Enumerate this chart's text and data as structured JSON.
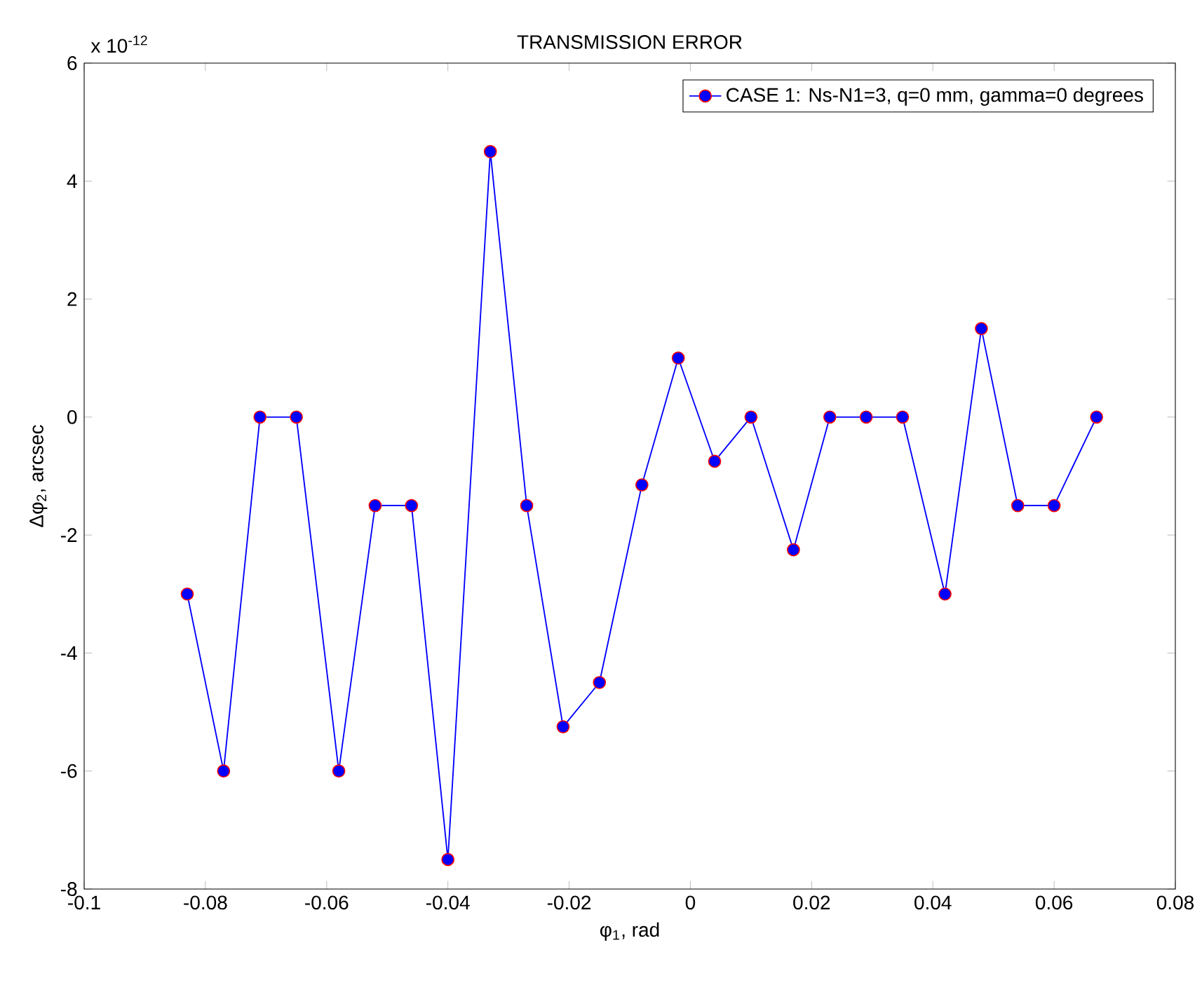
{
  "chart_data": {
    "type": "line",
    "title": "TRANSMISSION ERROR",
    "xlabel": "φ$_{1}$, rad",
    "ylabel": "Δφ$_{2}$, arcsec",
    "annotations": [
      "x 10$^{-12}$"
    ],
    "x": [
      -0.083,
      -0.077,
      -0.071,
      -0.065,
      -0.058,
      -0.052,
      -0.046,
      -0.04,
      -0.033,
      -0.027,
      -0.021,
      -0.015,
      -0.008,
      -0.002,
      0.004,
      0.01,
      0.017,
      0.023,
      0.029,
      0.035,
      0.042,
      0.048,
      0.054,
      0.06,
      0.067
    ],
    "series": [
      {
        "name": "CASE 1: Ns-N1=3, q=0 mm, gamma=0 degrees",
        "color": "#0000ff",
        "values": [
          -3,
          -6,
          0,
          0,
          -6,
          -1.5,
          -1.5,
          -7.5,
          4.5,
          -1.5,
          -5.25,
          -4.5,
          -1.15,
          1,
          -0.75,
          0,
          -2.25,
          0,
          0,
          0,
          -3,
          1.5,
          -1.5,
          -1.5,
          0
        ]
      }
    ],
    "xlim": [
      -0.1,
      0.08
    ],
    "ylim": [
      -8,
      6
    ],
    "xticks": [
      -0.1,
      -0.08,
      -0.06,
      -0.04,
      -0.02,
      0,
      0.02,
      0.04,
      0.06,
      0.08
    ],
    "yticks": [
      -8,
      -6,
      -4,
      -2,
      0,
      2,
      4,
      6
    ],
    "grid": false,
    "legend": "top right",
    "marker": "circle",
    "line_style": "solid"
  }
}
